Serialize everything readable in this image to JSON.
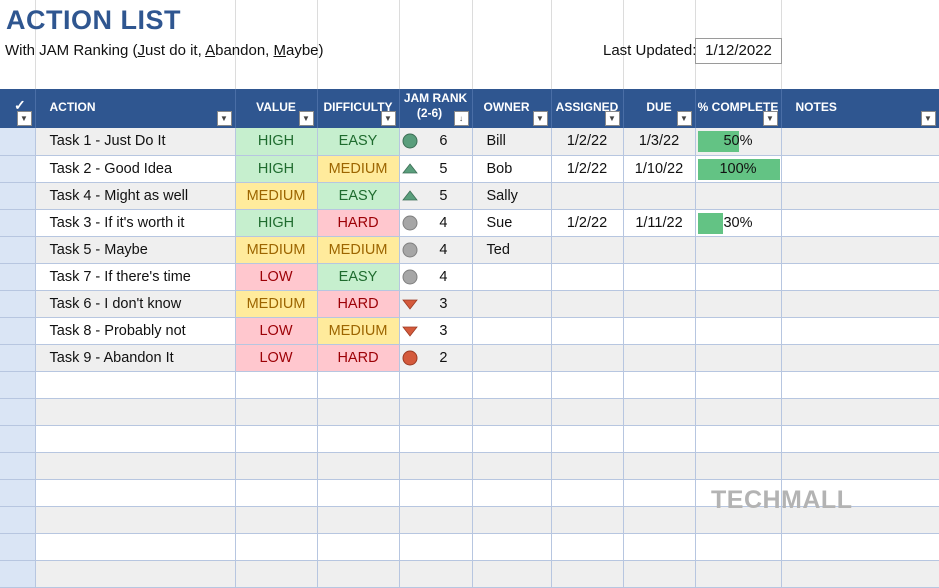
{
  "header": {
    "title": "ACTION LIST",
    "subtitle_parts": [
      "With JAM Ranking (",
      "J",
      "ust do it, ",
      "A",
      "bandon, ",
      "M",
      "aybe)"
    ],
    "last_updated_label": "Last Updated:",
    "last_updated_value": "1/12/2022"
  },
  "columns": {
    "action": "ACTION",
    "value": "VALUE",
    "difficulty": "DIFFICULTY",
    "jam_rank": "JAM RANK",
    "jam_rank_sub": "(2-6)",
    "owner": "OWNER",
    "assigned": "ASSIGNED",
    "due": "DUE",
    "complete": "% COMPLETE",
    "notes": "NOTES"
  },
  "colors": {
    "header_bg": "#2f5690",
    "high_green": "#c6efce",
    "medium_yellow": "#ffeb9c",
    "low_red": "#ffc7ce",
    "progress_bar": "#63c384",
    "icon_green": "#5a9e7c",
    "icon_gray": "#a6a6a6",
    "icon_red": "#d45a3c"
  },
  "rows": [
    {
      "action": "Task 1 - Just Do It",
      "value": "HIGH",
      "difficulty": "EASY",
      "jam_icon": "green-circle-icon",
      "jam": "6",
      "owner": "Bill",
      "assigned": "1/2/22",
      "due": "1/3/22",
      "complete": "50%",
      "complete_frac": 0.5
    },
    {
      "action": "Task 2 - Good Idea",
      "value": "HIGH",
      "difficulty": "MEDIUM",
      "jam_icon": "green-up-triangle-icon",
      "jam": "5",
      "owner": "Bob",
      "assigned": "1/2/22",
      "due": "1/10/22",
      "complete": "100%",
      "complete_frac": 1.0
    },
    {
      "action": "Task 4 - Might as well",
      "value": "MEDIUM",
      "difficulty": "EASY",
      "jam_icon": "green-up-triangle-icon",
      "jam": "5",
      "owner": "Sally",
      "assigned": "",
      "due": "",
      "complete": "",
      "complete_frac": 0
    },
    {
      "action": "Task 3 - If it's worth it",
      "value": "HIGH",
      "difficulty": "HARD",
      "jam_icon": "gray-circle-icon",
      "jam": "4",
      "owner": "Sue",
      "assigned": "1/2/22",
      "due": "1/11/22",
      "complete": "30%",
      "complete_frac": 0.3
    },
    {
      "action": "Task 5 - Maybe",
      "value": "MEDIUM",
      "difficulty": "MEDIUM",
      "jam_icon": "gray-circle-icon",
      "jam": "4",
      "owner": "Ted",
      "assigned": "",
      "due": "",
      "complete": "",
      "complete_frac": 0
    },
    {
      "action": "Task 7 - If there's time",
      "value": "LOW",
      "difficulty": "EASY",
      "jam_icon": "gray-circle-icon",
      "jam": "4",
      "owner": "",
      "assigned": "",
      "due": "",
      "complete": "",
      "complete_frac": 0
    },
    {
      "action": "Task 6 - I don't know",
      "value": "MEDIUM",
      "difficulty": "HARD",
      "jam_icon": "red-down-triangle-icon",
      "jam": "3",
      "owner": "",
      "assigned": "",
      "due": "",
      "complete": "",
      "complete_frac": 0
    },
    {
      "action": "Task 8 - Probably not",
      "value": "LOW",
      "difficulty": "MEDIUM",
      "jam_icon": "red-down-triangle-icon",
      "jam": "3",
      "owner": "",
      "assigned": "",
      "due": "",
      "complete": "",
      "complete_frac": 0
    },
    {
      "action": "Task 9 - Abandon It",
      "value": "LOW",
      "difficulty": "HARD",
      "jam_icon": "red-circle-icon",
      "jam": "2",
      "owner": "",
      "assigned": "",
      "due": "",
      "complete": "",
      "complete_frac": 0
    }
  ],
  "watermark": "TECHMALL"
}
